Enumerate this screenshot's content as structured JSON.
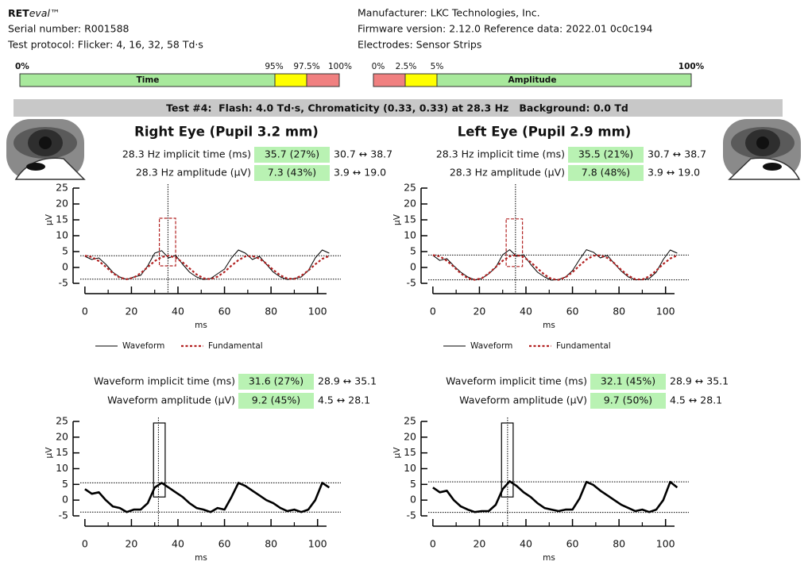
{
  "header": {
    "brand": {
      "bold": "RET",
      "italic": "eval",
      "mark": "™"
    },
    "serial": "Serial number: R001588",
    "protocol": "Test protocol: Flicker: 4, 16, 32, 58 Td·s",
    "manufacturer": "Manufacturer: LKC Technologies, Inc.",
    "firmware": "Firmware version: 2.12.0 Reference data: 2022.01 0c0c194",
    "electrodes": "Electrodes: Sensor Strips"
  },
  "legend_bars": [
    {
      "label": "Time",
      "ticks": [
        "0%",
        "95%",
        "97.5%",
        "100%"
      ]
    },
    {
      "label": "Amplitude",
      "ticks": [
        "0%",
        "2.5%",
        "5%",
        "100%"
      ]
    }
  ],
  "test_banner": "Test #4:  Flash: 4.0 Td·s, Chromaticity (0.33, 0.33) at 28.3 Hz   Background: 0.0 Td",
  "eyes": [
    {
      "title": "Right Eye (Pupil 3.2 mm)",
      "panels": [
        {
          "metrics": [
            {
              "label": "28.3 Hz implicit time (ms)",
              "value": "35.7 (27%)",
              "range": "30.7 ↔ 38.7"
            },
            {
              "label": "28.3 Hz amplitude (µV)",
              "value": "7.3 (43%)",
              "range": "3.9 ↔ 19.0"
            }
          ],
          "chart": {
            "type": "line",
            "xlabel": "ms",
            "ylabel": "µV",
            "x": [
              0,
              3,
              6,
              9,
              12,
              15,
              18,
              21,
              24,
              27,
              30,
              33,
              36,
              39,
              42,
              45,
              48,
              51,
              54,
              57,
              60,
              63,
              66,
              69,
              72,
              75,
              78,
              81,
              84,
              87,
              90,
              93,
              96,
              99,
              102,
              105
            ],
            "series": [
              {
                "name": "Waveform",
                "color": "#000000",
                "style": "solid",
                "values": [
                  3.5,
                  2.5,
                  3.0,
                  1.0,
                  -1.5,
                  -3.0,
                  -3.8,
                  -3.0,
                  -2.5,
                  0.5,
                  4.5,
                  5.3,
                  3.0,
                  3.8,
                  1.0,
                  -1.5,
                  -3.0,
                  -3.8,
                  -3.5,
                  -2.0,
                  -0.5,
                  3.0,
                  5.5,
                  4.5,
                  2.5,
                  3.5,
                  1.0,
                  -1.5,
                  -3.0,
                  -3.8,
                  -3.5,
                  -3.0,
                  -1.0,
                  3.0,
                  5.5,
                  4.5
                ]
              },
              {
                "name": "Fundamental",
                "color": "#b22222",
                "style": "dotted",
                "values": [
                  3.7,
                  3.3,
                  2.0,
                  0.2,
                  -1.8,
                  -3.2,
                  -3.7,
                  -3.2,
                  -1.8,
                  0.1,
                  2.0,
                  3.3,
                  3.7,
                  3.1,
                  1.6,
                  -0.3,
                  -2.2,
                  -3.4,
                  -3.7,
                  -2.9,
                  -1.4,
                  0.6,
                  2.3,
                  3.5,
                  3.6,
                  2.8,
                  1.2,
                  -0.8,
                  -2.5,
                  -3.5,
                  -3.6,
                  -2.6,
                  -1.0,
                  1.0,
                  2.7,
                  3.6
                ]
              }
            ],
            "xlim": [
              -2,
              110
            ],
            "ylim": [
              -5,
              25
            ],
            "xticks": [
              0,
              20,
              40,
              60,
              80,
              100
            ],
            "xminor": [
              10,
              30,
              50,
              70,
              90
            ],
            "yticks": [
              -5,
              0,
              5,
              10,
              15,
              20,
              25
            ],
            "hlines": [
              3.7,
              -3.7
            ],
            "vline": 35.7,
            "box": {
              "x": [
                32,
                39
              ],
              "y": [
                0.5,
                15.5
              ],
              "color": "#b22222",
              "style": "dashed"
            }
          }
        },
        {
          "metrics": [
            {
              "label": "Waveform implicit time (ms)",
              "value": "31.6 (27%)",
              "range": "28.9 ↔ 35.1"
            },
            {
              "label": "Waveform amplitude (µV)",
              "value": "9.2 (45%)",
              "range": "4.5 ↔ 28.1"
            }
          ],
          "chart": {
            "type": "line",
            "xlabel": "ms",
            "ylabel": "µV",
            "x": [
              0,
              3,
              6,
              9,
              12,
              15,
              18,
              21,
              24,
              27,
              30,
              33,
              36,
              39,
              42,
              45,
              48,
              51,
              54,
              57,
              60,
              63,
              66,
              69,
              72,
              75,
              78,
              81,
              84,
              87,
              90,
              93,
              96,
              99,
              102,
              105
            ],
            "series": [
              {
                "color": "#000000",
                "style": "thick",
                "values": [
                  3.5,
                  2.0,
                  2.5,
                  0.0,
                  -2.0,
                  -2.5,
                  -3.8,
                  -3.0,
                  -3.0,
                  -1.0,
                  4.0,
                  5.5,
                  4.0,
                  2.5,
                  1.0,
                  -1.0,
                  -2.5,
                  -3.0,
                  -3.8,
                  -2.5,
                  -3.0,
                  1.0,
                  5.5,
                  4.5,
                  3.0,
                  1.5,
                  0.0,
                  -1.0,
                  -2.5,
                  -3.5,
                  -3.0,
                  -3.8,
                  -3.0,
                  0.0,
                  5.5,
                  4.0
                ]
              }
            ],
            "xlim": [
              -2,
              110
            ],
            "ylim": [
              -5,
              25
            ],
            "xticks": [
              0,
              20,
              40,
              60,
              80,
              100
            ],
            "xminor": [
              10,
              30,
              50,
              70,
              90
            ],
            "yticks": [
              -5,
              0,
              5,
              10,
              15,
              20,
              25
            ],
            "hlines": [
              5.5,
              -3.8
            ],
            "vline": 31.6,
            "box": {
              "x": [
                29.5,
                34.5
              ],
              "y": [
                1,
                24.5
              ],
              "color": "#000000",
              "style": "solid"
            }
          }
        }
      ]
    },
    {
      "title": "Left Eye (Pupil 2.9 mm)",
      "panels": [
        {
          "metrics": [
            {
              "label": "28.3 Hz implicit time (ms)",
              "value": "35.5 (21%)",
              "range": "30.7 ↔ 38.7"
            },
            {
              "label": "28.3 Hz amplitude (µV)",
              "value": "7.8 (48%)",
              "range": "3.9 ↔ 19.0"
            }
          ],
          "chart": {
            "type": "line",
            "xlabel": "ms",
            "ylabel": "µV",
            "x": [
              0,
              3,
              6,
              9,
              12,
              15,
              18,
              21,
              24,
              27,
              30,
              33,
              36,
              39,
              42,
              45,
              48,
              51,
              54,
              57,
              60,
              63,
              66,
              69,
              72,
              75,
              78,
              81,
              84,
              87,
              90,
              93,
              96,
              99,
              102,
              105
            ],
            "series": [
              {
                "name": "Waveform",
                "color": "#000000",
                "style": "solid",
                "values": [
                  3.8,
                  2.2,
                  2.8,
                  0.5,
                  -1.5,
                  -3.0,
                  -3.9,
                  -3.5,
                  -2.0,
                  0.0,
                  4.0,
                  5.6,
                  3.5,
                  4.0,
                  1.0,
                  -1.5,
                  -3.0,
                  -4.0,
                  -3.8,
                  -3.0,
                  -1.0,
                  2.5,
                  5.6,
                  4.8,
                  3.0,
                  3.8,
                  1.2,
                  -1.2,
                  -3.0,
                  -3.9,
                  -3.8,
                  -3.5,
                  -1.5,
                  2.5,
                  5.5,
                  4.5
                ]
              },
              {
                "name": "Fundamental",
                "color": "#b22222",
                "style": "dotted",
                "values": [
                  3.9,
                  3.5,
                  2.1,
                  0.2,
                  -1.9,
                  -3.4,
                  -3.9,
                  -3.4,
                  -1.9,
                  0.1,
                  2.1,
                  3.5,
                  3.9,
                  3.3,
                  1.7,
                  -0.3,
                  -2.3,
                  -3.6,
                  -3.9,
                  -3.1,
                  -1.5,
                  0.6,
                  2.5,
                  3.7,
                  3.8,
                  3.0,
                  1.3,
                  -0.8,
                  -2.6,
                  -3.7,
                  -3.8,
                  -2.8,
                  -1.0,
                  1.1,
                  2.8,
                  3.8
                ]
              }
            ],
            "xlim": [
              -2,
              110
            ],
            "ylim": [
              -5,
              25
            ],
            "xticks": [
              0,
              20,
              40,
              60,
              80,
              100
            ],
            "xminor": [
              10,
              30,
              50,
              70,
              90
            ],
            "yticks": [
              -5,
              0,
              5,
              10,
              15,
              20,
              25
            ],
            "hlines": [
              3.9,
              -3.9
            ],
            "vline": 35.5,
            "box": {
              "x": [
                31.5,
                38.5
              ],
              "y": [
                0.3,
                15.3
              ],
              "color": "#b22222",
              "style": "dashed"
            }
          }
        },
        {
          "metrics": [
            {
              "label": "Waveform implicit time (ms)",
              "value": "32.1 (45%)",
              "range": "28.9 ↔ 35.1"
            },
            {
              "label": "Waveform amplitude (µV)",
              "value": "9.7 (50%)",
              "range": "4.5 ↔ 28.1"
            }
          ],
          "chart": {
            "type": "line",
            "xlabel": "ms",
            "ylabel": "µV",
            "x": [
              0,
              3,
              6,
              9,
              12,
              15,
              18,
              21,
              24,
              27,
              30,
              33,
              36,
              39,
              42,
              45,
              48,
              51,
              54,
              57,
              60,
              63,
              66,
              69,
              72,
              75,
              78,
              81,
              84,
              87,
              90,
              93,
              96,
              99,
              102,
              105
            ],
            "series": [
              {
                "color": "#000000",
                "style": "thick",
                "values": [
                  4.0,
                  2.5,
                  3.0,
                  0.0,
                  -2.0,
                  -3.0,
                  -3.8,
                  -3.5,
                  -3.5,
                  -1.5,
                  3.5,
                  6.0,
                  4.5,
                  2.5,
                  1.0,
                  -1.0,
                  -2.5,
                  -3.0,
                  -3.5,
                  -3.0,
                  -3.0,
                  0.5,
                  5.8,
                  4.8,
                  3.0,
                  1.5,
                  0.0,
                  -1.5,
                  -2.5,
                  -3.5,
                  -3.0,
                  -3.8,
                  -3.0,
                  0.0,
                  5.8,
                  4.0
                ]
              }
            ],
            "xlim": [
              -2,
              110
            ],
            "ylim": [
              -5,
              25
            ],
            "xticks": [
              0,
              20,
              40,
              60,
              80,
              100
            ],
            "xminor": [
              10,
              30,
              50,
              70,
              90
            ],
            "yticks": [
              -5,
              0,
              5,
              10,
              15,
              20,
              25
            ],
            "hlines": [
              5.8,
              -3.9
            ],
            "vline": 32.1,
            "box": {
              "x": [
                29.5,
                34.5
              ],
              "y": [
                1,
                24.5
              ],
              "color": "#000000",
              "style": "solid"
            }
          }
        }
      ]
    }
  ]
}
